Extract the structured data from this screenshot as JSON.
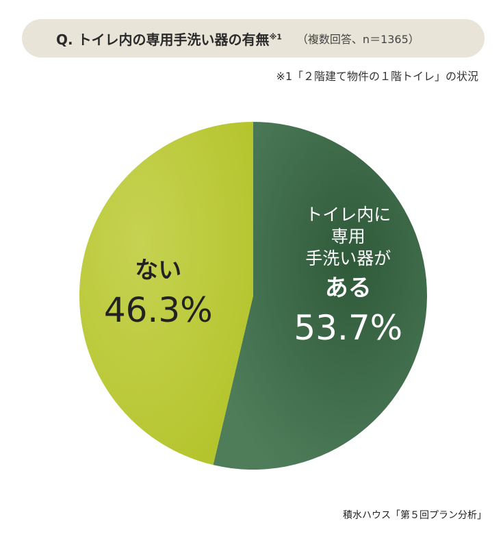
{
  "header": {
    "title": "Q. トイレ内の専用手洗い器の有無",
    "title_note_mark": "※1",
    "subtitle": "（複数回答、n＝1365）"
  },
  "footnote": "※1「２階建て物件の１階トイレ」の状況",
  "source": "積水ハウス「第５回プラン分析」",
  "colors": {
    "aru": "#3f6e4a",
    "aru_dark": "#2f5a3a",
    "nai": "#bccb3a",
    "nai_light": "#c8d458",
    "title_bg": "#e8e4d8"
  },
  "chart_data": {
    "type": "pie",
    "title": "Q. トイレ内の専用手洗い器の有無",
    "slices": [
      {
        "label_lines": [
          "トイレ内に",
          "専用",
          "手洗い器が"
        ],
        "label_big": "ある",
        "value": 53.7,
        "value_label": "53.7%",
        "color": "#3f6e4a",
        "text_color": "#ffffff"
      },
      {
        "label_lines": [],
        "label_big": "ない",
        "value": 46.3,
        "value_label": "46.3%",
        "color": "#bccb3a",
        "text_color": "#222222"
      }
    ]
  }
}
